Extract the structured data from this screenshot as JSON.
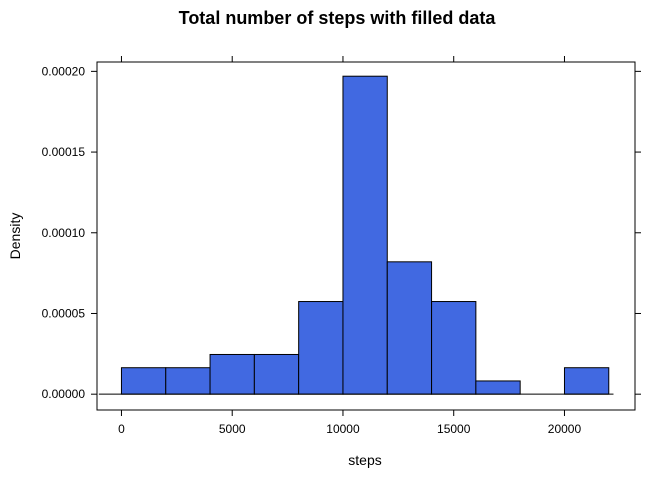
{
  "chart_data": {
    "type": "bar",
    "title": "Total number of steps with filled data",
    "xlabel": "steps",
    "ylabel": "Density",
    "xlim": [
      -1104,
      23184
    ],
    "ylim": [
      -9.8e-06,
      0.0002058
    ],
    "x_ticks": [
      0,
      5000,
      10000,
      15000,
      20000
    ],
    "x_tick_labels": [
      "0",
      "5000",
      "10000",
      "15000",
      "20000"
    ],
    "y_ticks": [
      0.0,
      5e-05,
      0.0001,
      0.00015,
      0.0002
    ],
    "y_tick_labels": [
      "0.00000",
      "0.00005",
      "0.00010",
      "0.00015",
      "0.00020"
    ],
    "bin_edges": [
      0,
      2000,
      4000,
      6000,
      8000,
      10000,
      12000,
      14000,
      16000,
      18000,
      20000,
      22000
    ],
    "values": [
      1.64e-05,
      1.64e-05,
      2.46e-05,
      2.46e-05,
      5.74e-05,
      0.000197,
      8.2e-05,
      5.74e-05,
      8.2e-06,
      0.0,
      1.64e-05
    ],
    "bar_color": "#4169E1",
    "grid": false,
    "legend": "none"
  }
}
